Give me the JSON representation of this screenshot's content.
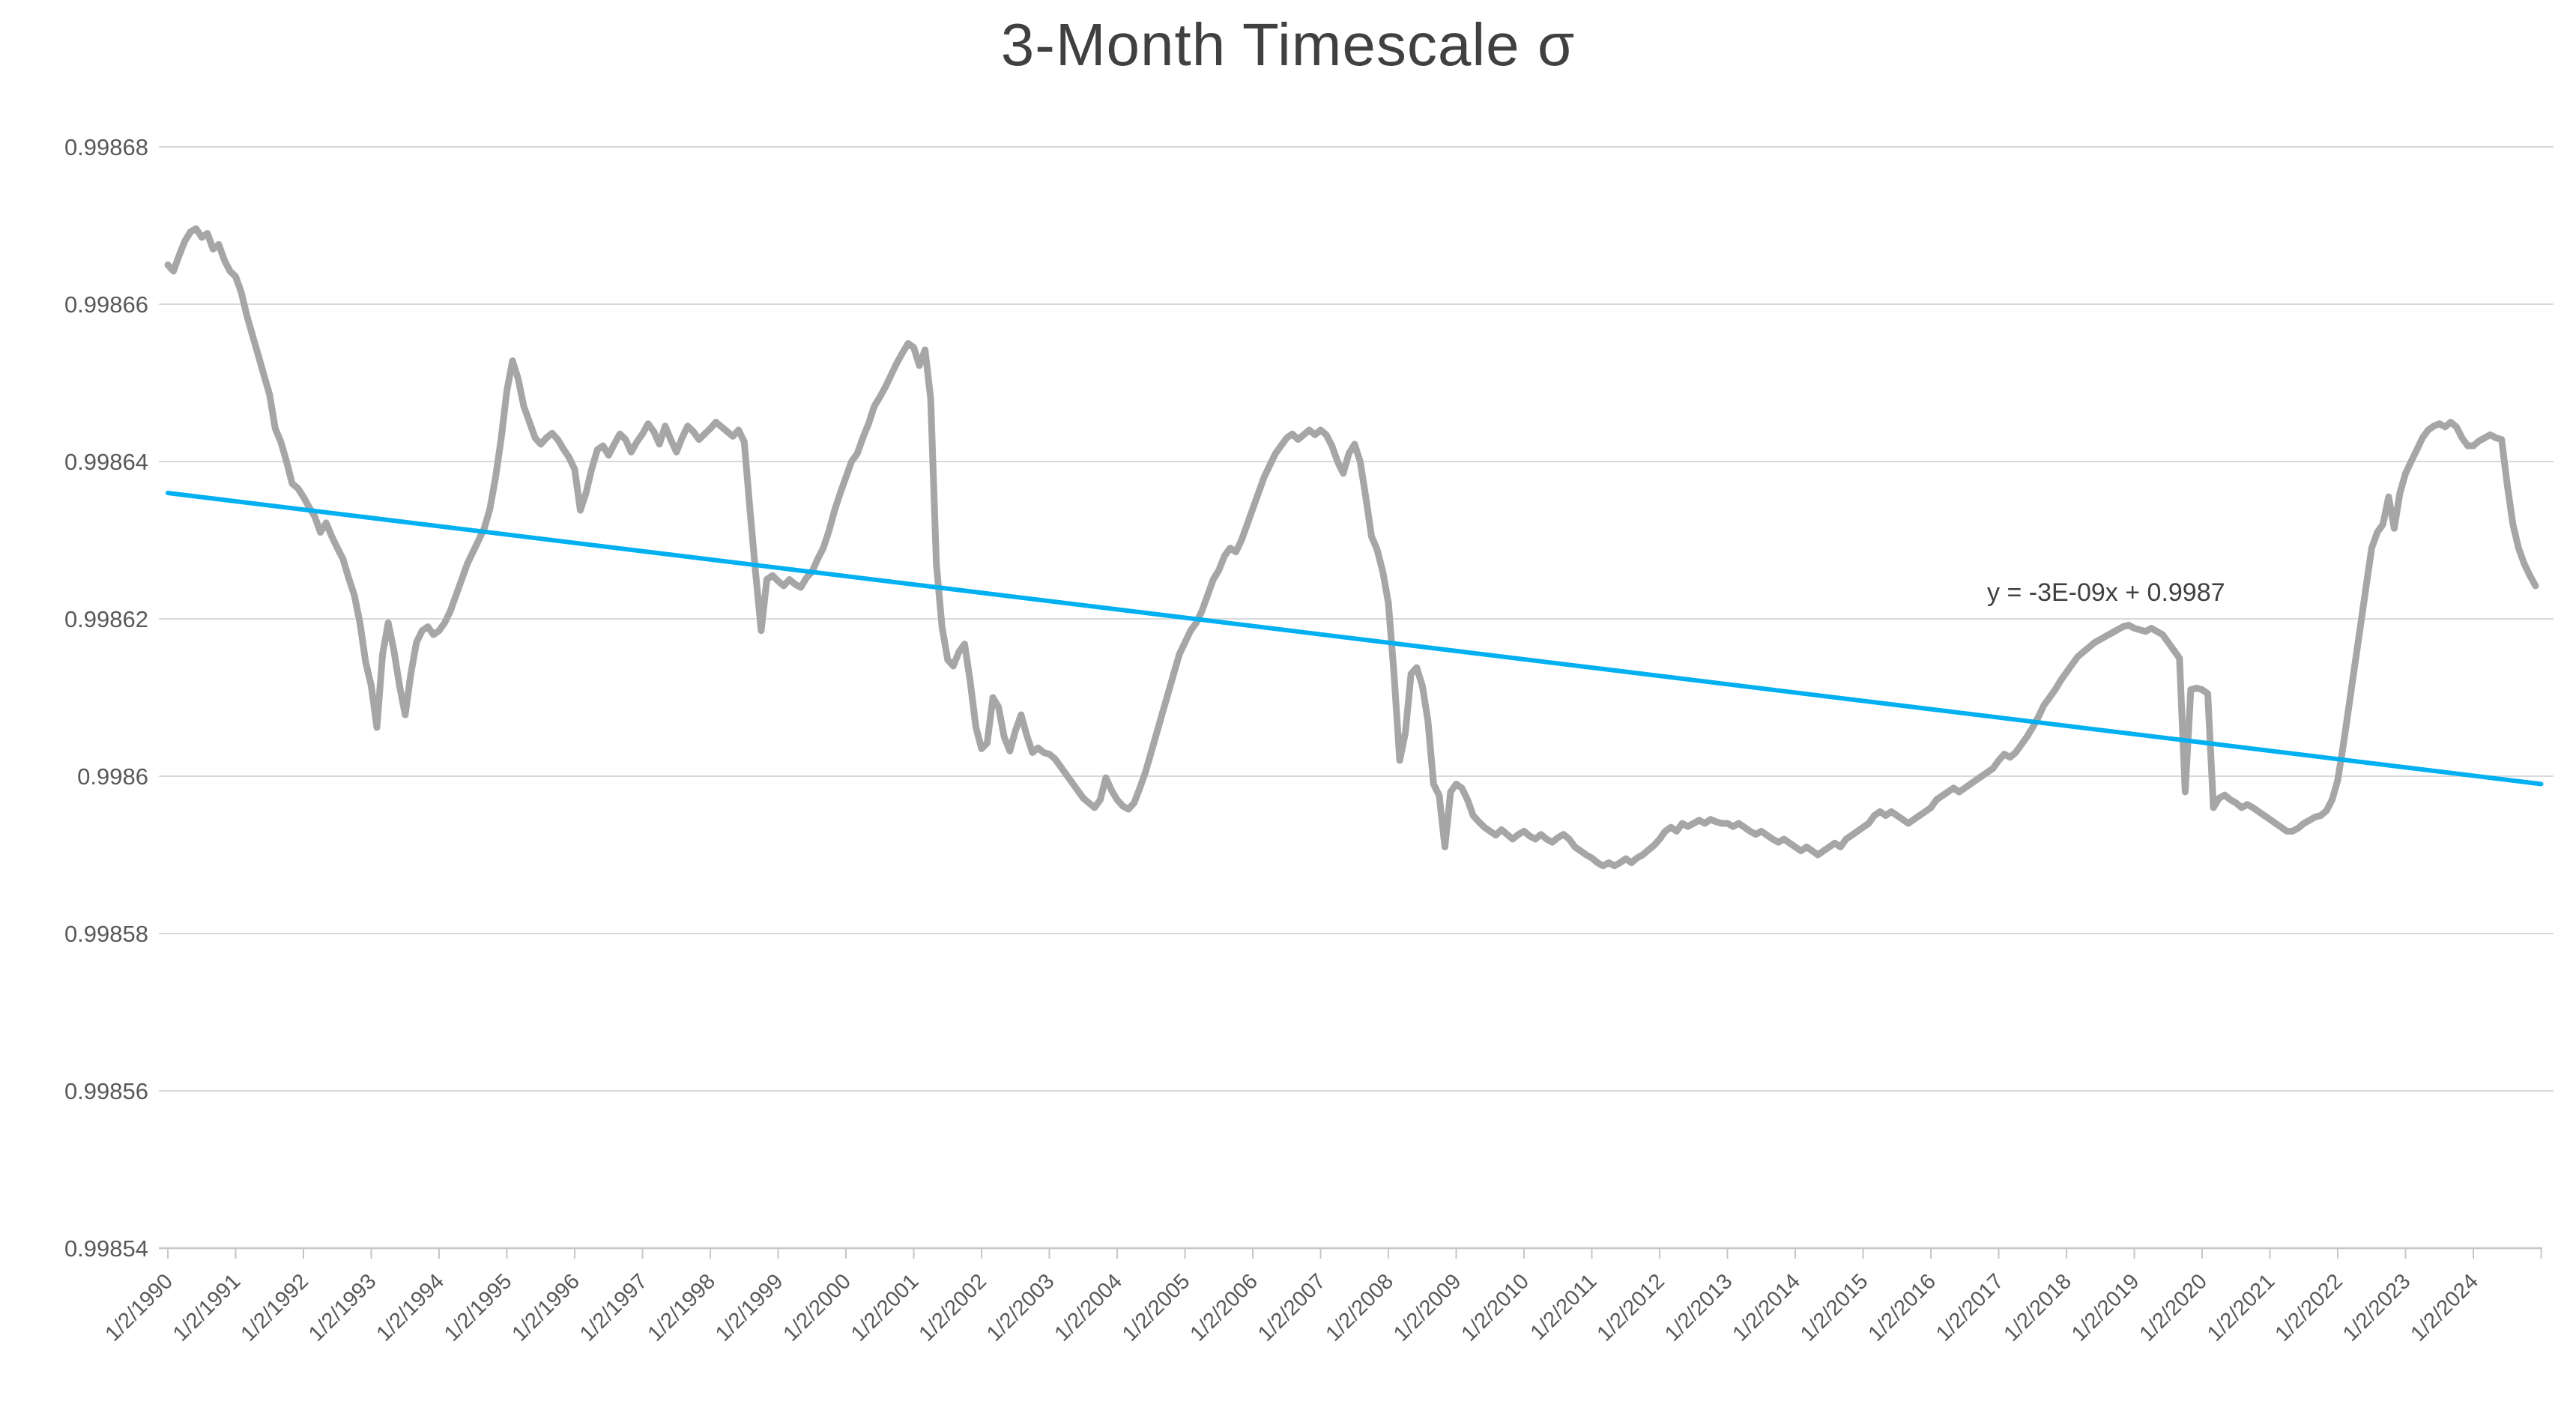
{
  "title": "3-Month Timescale σ",
  "trendline": {
    "equation_label": "y = -3E-09x + 0.9987",
    "start_value": 0.998636,
    "end_value": 0.998599,
    "color": "#00b0f0"
  },
  "colors": {
    "series_gray": "#a6a6a6",
    "trendline_cyan": "#00b0f0",
    "gridline": "#d9d9d9",
    "axis_line": "#c6c6c6",
    "tick_label": "#595959",
    "title_text": "#404040"
  },
  "chart_data": {
    "type": "line",
    "title": "3-Month Timescale σ",
    "xlabel": "",
    "ylabel": "",
    "grid": true,
    "legend": false,
    "x_label_rotation": -45,
    "ylim": [
      0.99854,
      0.99868
    ],
    "y_tick_step": 2e-05,
    "y_tick_labels": [
      "0.99868",
      "0.99866",
      "0.99864",
      "0.99862",
      "0.9986",
      "0.99858",
      "0.99856",
      "0.99854"
    ],
    "y_tick_values": [
      0.99868,
      0.99866,
      0.99864,
      0.99862,
      0.9986,
      0.99858,
      0.99856,
      0.99854
    ],
    "x_tick_labels": [
      "1/2/1990",
      "1/2/1991",
      "1/2/1992",
      "1/2/1993",
      "1/2/1994",
      "1/2/1995",
      "1/2/1996",
      "1/2/1997",
      "1/2/1998",
      "1/2/1999",
      "1/2/2000",
      "1/2/2001",
      "1/2/2002",
      "1/2/2003",
      "1/2/2004",
      "1/2/2005",
      "1/2/2006",
      "1/2/2007",
      "1/2/2008",
      "1/2/2009",
      "1/2/2010",
      "1/2/2011",
      "1/2/2012",
      "1/2/2013",
      "1/2/2014",
      "1/2/2015",
      "1/2/2016",
      "1/2/2017",
      "1/2/2018",
      "1/2/2019",
      "1/2/2020",
      "1/2/2021",
      "1/2/2022",
      "1/2/2023",
      "1/2/2024"
    ],
    "series": [
      {
        "name": "3-Month Timescale σ",
        "color": "#a6a6a6",
        "x_start": "1/2/1990",
        "x_step_months": 1,
        "values": [
          0.998665,
          0.9986642,
          0.9986662,
          0.998668,
          0.9986692,
          0.9986696,
          0.9986685,
          0.998669,
          0.998667,
          0.9986676,
          0.9986656,
          0.9986642,
          0.9986635,
          0.9986615,
          0.9986585,
          0.998656,
          0.9986535,
          0.998651,
          0.9986485,
          0.9986442,
          0.9986425,
          0.99864,
          0.9986372,
          0.9986366,
          0.9986355,
          0.9986342,
          0.998633,
          0.998631,
          0.9986322,
          0.9986305,
          0.998629,
          0.9986276,
          0.9986252,
          0.998623,
          0.9986195,
          0.9986145,
          0.9986115,
          0.9986062,
          0.9986155,
          0.9986195,
          0.998616,
          0.9986115,
          0.9986078,
          0.998613,
          0.998617,
          0.9986185,
          0.998619,
          0.998618,
          0.9986185,
          0.9986195,
          0.998621,
          0.998623,
          0.998625,
          0.998627,
          0.9986285,
          0.99863,
          0.9986315,
          0.998634,
          0.998638,
          0.998643,
          0.998649,
          0.9986528,
          0.9986505,
          0.998647,
          0.998645,
          0.998643,
          0.9986422,
          0.998643,
          0.9986436,
          0.9986428,
          0.9986416,
          0.9986405,
          0.998639,
          0.9986338,
          0.998636,
          0.998639,
          0.9986415,
          0.998642,
          0.9986408,
          0.9986422,
          0.9986435,
          0.9986428,
          0.9986412,
          0.9986425,
          0.9986435,
          0.9986448,
          0.9986438,
          0.9986422,
          0.9986445,
          0.9986428,
          0.9986412,
          0.998643,
          0.9986445,
          0.9986438,
          0.9986428,
          0.9986435,
          0.9986442,
          0.998645,
          0.9986444,
          0.9986438,
          0.9986432,
          0.998644,
          0.9986425,
          0.998634,
          0.998626,
          0.9986185,
          0.998625,
          0.9986255,
          0.9986248,
          0.9986242,
          0.998625,
          0.9986244,
          0.998624,
          0.9986252,
          0.998626,
          0.9986276,
          0.998629,
          0.9986312,
          0.9986338,
          0.998636,
          0.998638,
          0.99864,
          0.998641,
          0.998643,
          0.9986448,
          0.998647,
          0.9986482,
          0.9986495,
          0.998651,
          0.9986525,
          0.9986538,
          0.998655,
          0.9986545,
          0.9986522,
          0.9986542,
          0.998648,
          0.998627,
          0.998619,
          0.9986148,
          0.998614,
          0.9986158,
          0.9986168,
          0.998612,
          0.9986062,
          0.9986035,
          0.9986042,
          0.99861,
          0.9986088,
          0.998605,
          0.9986032,
          0.9986058,
          0.9986078,
          0.9986052,
          0.998603,
          0.9986036,
          0.998603,
          0.9986028,
          0.9986022,
          0.9986012,
          0.9986002,
          0.9985992,
          0.9985982,
          0.9985972,
          0.9985966,
          0.998596,
          0.998597,
          0.9985998,
          0.9985982,
          0.998597,
          0.9985962,
          0.9985958,
          0.9985966,
          0.9985985,
          0.9986005,
          0.998603,
          0.9986055,
          0.998608,
          0.9986105,
          0.998613,
          0.9986155,
          0.998617,
          0.9986185,
          0.9986195,
          0.998621,
          0.998623,
          0.998625,
          0.9986262,
          0.998628,
          0.998629,
          0.9986285,
          0.99863,
          0.998632,
          0.998634,
          0.998636,
          0.998638,
          0.9986395,
          0.998641,
          0.998642,
          0.998643,
          0.9986435,
          0.9986428,
          0.9986434,
          0.998644,
          0.9986434,
          0.998644,
          0.9986434,
          0.998642,
          0.99864,
          0.9986385,
          0.998641,
          0.9986422,
          0.99864,
          0.9986355,
          0.9986305,
          0.9986288,
          0.998626,
          0.998622,
          0.998613,
          0.998602,
          0.9986055,
          0.998613,
          0.9986138,
          0.9986115,
          0.998607,
          0.998599,
          0.9985975,
          0.998591,
          0.998598,
          0.998599,
          0.9985985,
          0.998597,
          0.998595,
          0.9985942,
          0.9985935,
          0.998593,
          0.9985925,
          0.9985932,
          0.9985926,
          0.998592,
          0.9985926,
          0.998593,
          0.9985924,
          0.998592,
          0.9985926,
          0.998592,
          0.9985916,
          0.9985922,
          0.9985926,
          0.998592,
          0.998591,
          0.9985905,
          0.99859,
          0.9985896,
          0.998589,
          0.9985886,
          0.998589,
          0.9985886,
          0.998589,
          0.9985895,
          0.998589,
          0.9985896,
          0.99859,
          0.9985906,
          0.9985912,
          0.998592,
          0.998593,
          0.9985935,
          0.998593,
          0.998594,
          0.9985936,
          0.998594,
          0.9985944,
          0.998594,
          0.9985945,
          0.9985942,
          0.998594,
          0.998594,
          0.9985936,
          0.998594,
          0.9985935,
          0.998593,
          0.9985926,
          0.998593,
          0.9985925,
          0.998592,
          0.9985916,
          0.998592,
          0.9985915,
          0.998591,
          0.9985905,
          0.998591,
          0.9985905,
          0.99859,
          0.9985905,
          0.998591,
          0.9985915,
          0.998591,
          0.998592,
          0.9985925,
          0.998593,
          0.9985935,
          0.998594,
          0.998595,
          0.9985955,
          0.998595,
          0.9985955,
          0.998595,
          0.9985945,
          0.998594,
          0.9985945,
          0.998595,
          0.9985955,
          0.998596,
          0.998597,
          0.9985975,
          0.998598,
          0.9985985,
          0.998598,
          0.9985985,
          0.998599,
          0.9985995,
          0.9986,
          0.9986005,
          0.998601,
          0.998602,
          0.9986028,
          0.9986024,
          0.998603,
          0.998604,
          0.998605,
          0.9986062,
          0.9986075,
          0.998609,
          0.99861,
          0.998611,
          0.9986122,
          0.9986132,
          0.9986142,
          0.9986152,
          0.9986158,
          0.9986164,
          0.998617,
          0.9986174,
          0.9986178,
          0.9986182,
          0.9986186,
          0.998619,
          0.9986192,
          0.9986188,
          0.9986186,
          0.9986184,
          0.9986188,
          0.9986184,
          0.998618,
          0.998617,
          0.998616,
          0.998615,
          0.998598,
          0.998611,
          0.9986112,
          0.998611,
          0.9986105,
          0.998596,
          0.9985972,
          0.9985976,
          0.998597,
          0.9985966,
          0.998596,
          0.9985964,
          0.998596,
          0.9985955,
          0.998595,
          0.9985945,
          0.998594,
          0.9985935,
          0.998593,
          0.998593,
          0.9985934,
          0.998594,
          0.9985944,
          0.9985948,
          0.998595,
          0.9985956,
          0.998597,
          0.9985995,
          0.998604,
          0.998609,
          0.998614,
          0.998619,
          0.998624,
          0.998629,
          0.998631,
          0.998632,
          0.9986355,
          0.9986315,
          0.998636,
          0.9986385,
          0.99864,
          0.9986415,
          0.998643,
          0.998644,
          0.9986445,
          0.9986448,
          0.9986444,
          0.998645,
          0.9986444,
          0.998643,
          0.998642,
          0.998642,
          0.9986426,
          0.998643,
          0.9986434,
          0.998643,
          0.9986428,
          0.998637,
          0.998632,
          0.998629,
          0.998627,
          0.9986255,
          0.9986242
        ]
      }
    ],
    "trendline": {
      "label": "y = -3E-09x + 0.9987",
      "start_value": 0.998636,
      "end_value": 0.998599
    }
  }
}
